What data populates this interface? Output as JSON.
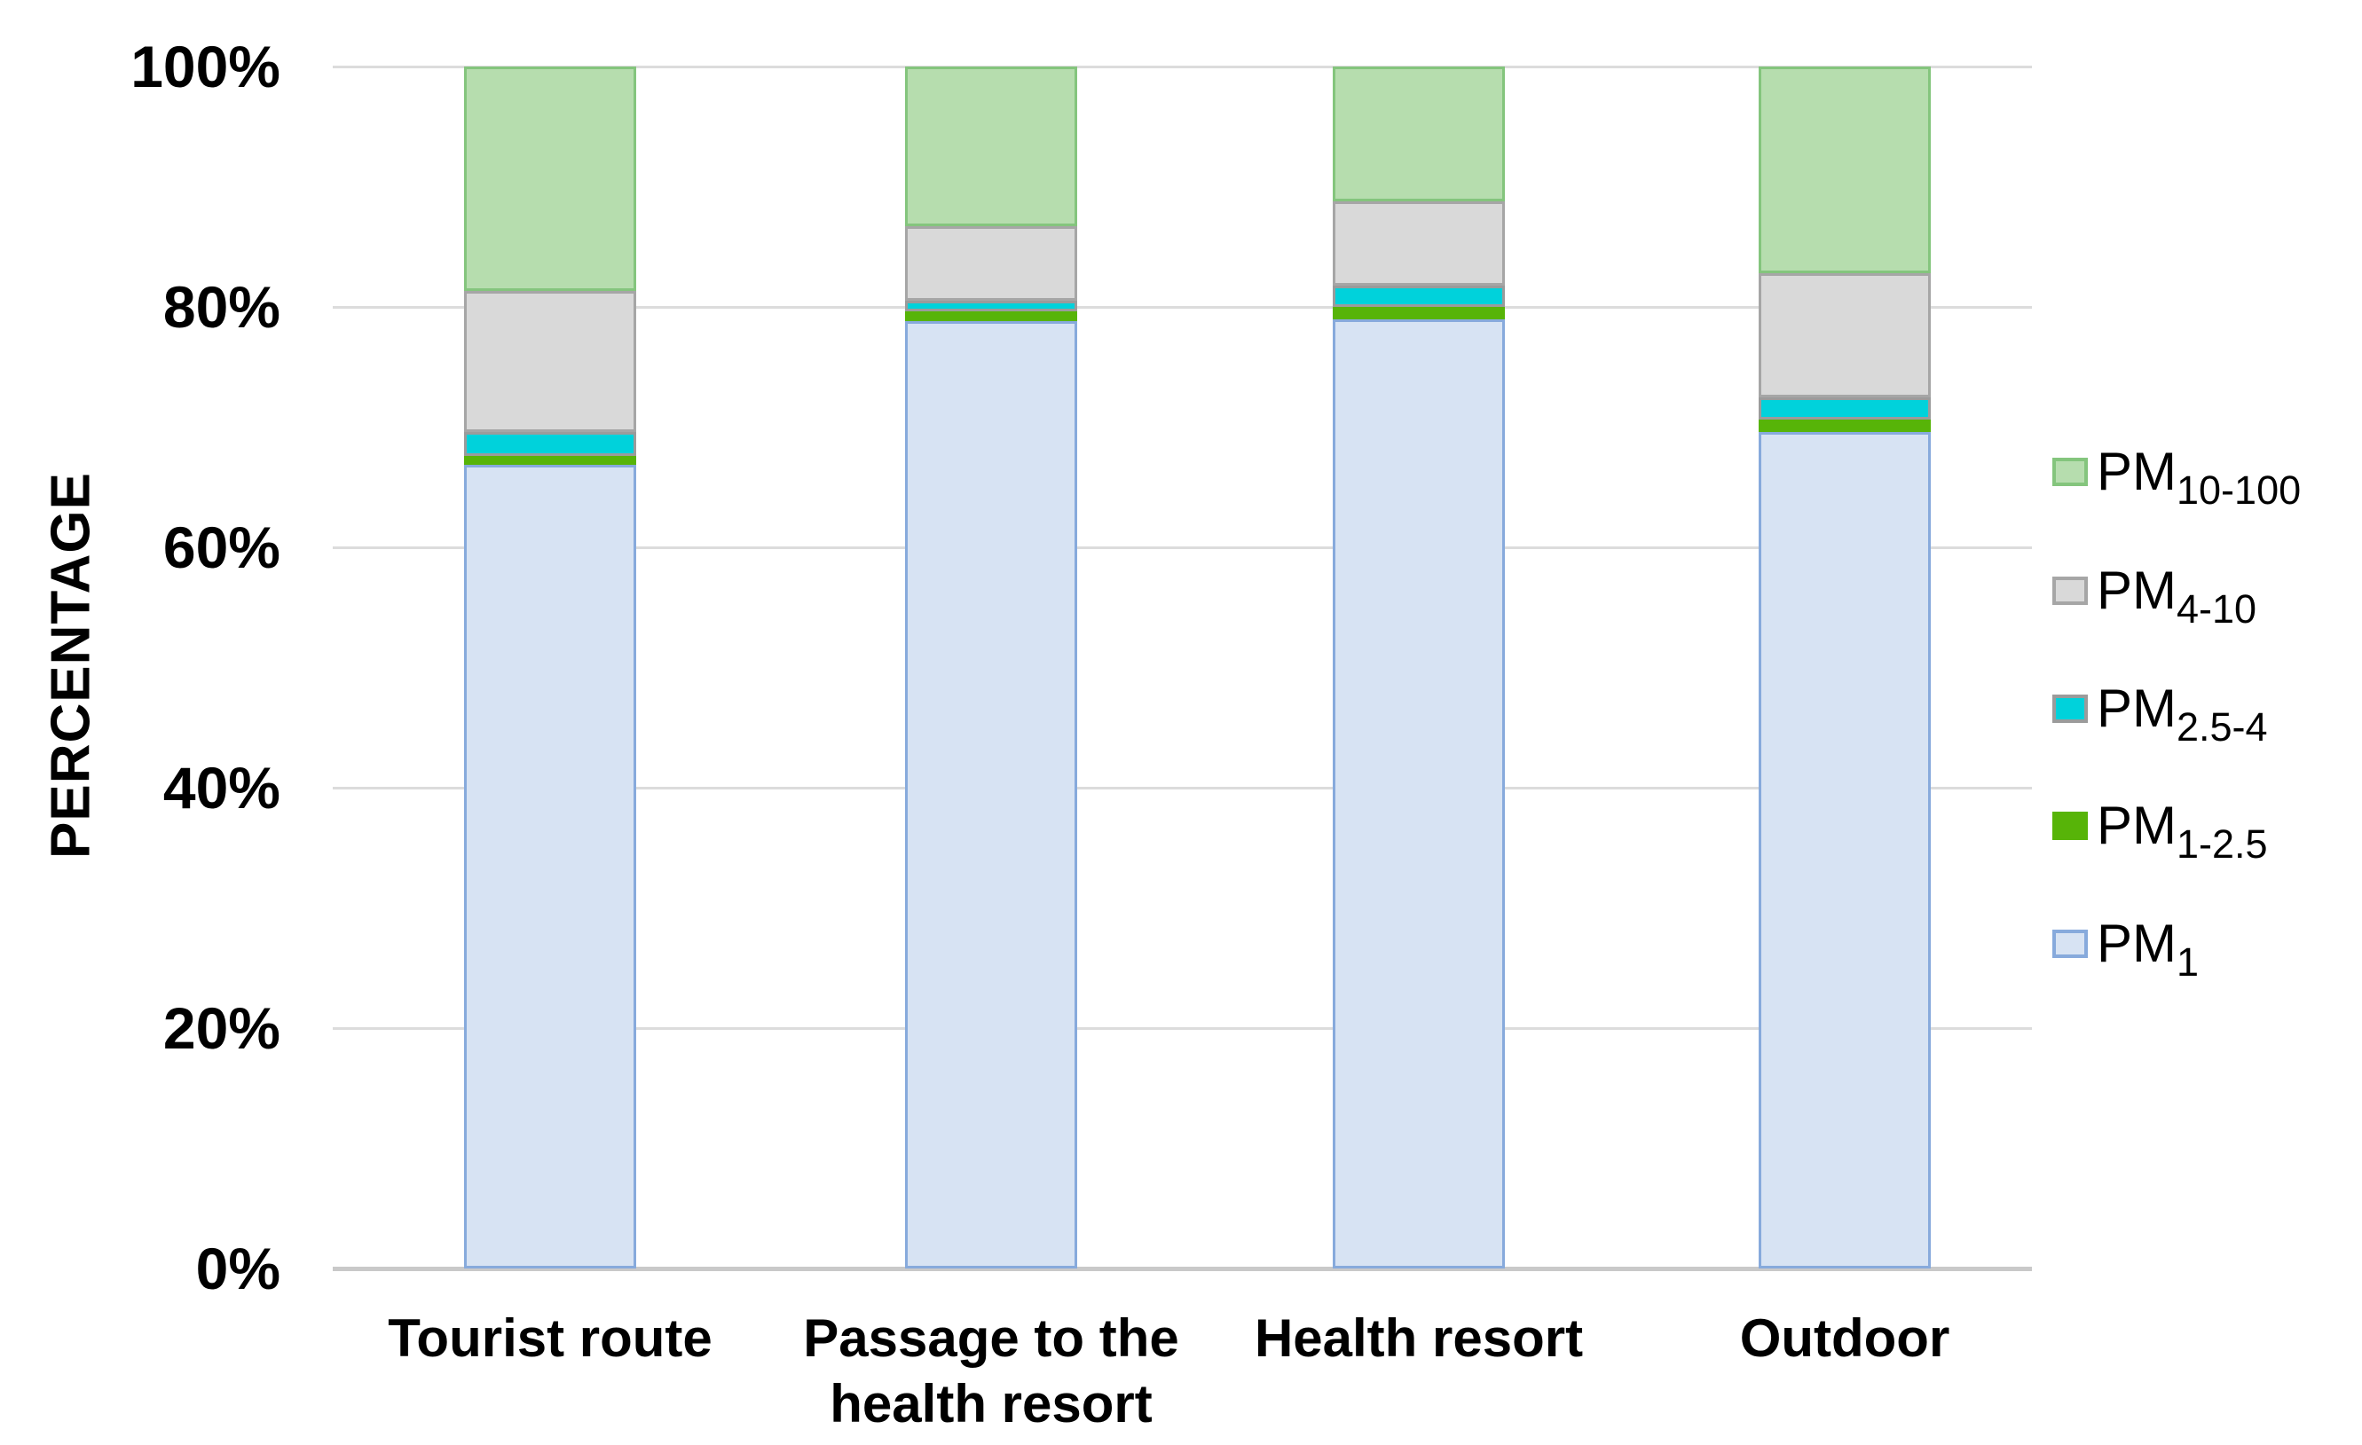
{
  "chart_data": {
    "type": "bar",
    "stacked": true,
    "percent_stacked": true,
    "title": "",
    "xlabel": "",
    "ylabel": "PERCENTAGE",
    "ylim": [
      0,
      100
    ],
    "grid": true,
    "legend_position": "right",
    "ytick_labels": [
      "0%",
      "20%",
      "40%",
      "60%",
      "80%",
      "100%"
    ],
    "ytick_values": [
      0,
      20,
      40,
      60,
      80,
      100
    ],
    "categories": [
      "Tourist route",
      "Passage to the health resort",
      "Health resort",
      "Outdoor"
    ],
    "series": [
      {
        "name": "PM1",
        "label_base": "PM",
        "label_sub": "1",
        "color": "#d7e3f3",
        "border": "#87aadc",
        "values": [
          66.9,
          78.8,
          79.0,
          69.6
        ]
      },
      {
        "name": "PM1-2.5",
        "label_base": "PM",
        "label_sub": "1-2.5",
        "color": "#57b408",
        "border": "#57b408",
        "values": [
          0.7,
          0.8,
          1.0,
          1.0
        ]
      },
      {
        "name": "PM2.5-4",
        "label_base": "PM",
        "label_sub": "2.5-4",
        "color": "#00d2db",
        "border": "#9b9b9b",
        "values": [
          2.0,
          0.9,
          1.8,
          1.9
        ]
      },
      {
        "name": "PM4-10",
        "label_base": "PM",
        "label_sub": "4-10",
        "color": "#d9d9d9",
        "border": "#a6a6a6",
        "values": [
          11.7,
          6.2,
          7.0,
          10.3
        ]
      },
      {
        "name": "PM10-100",
        "label_base": "PM",
        "label_sub": "10-100",
        "color": "#b6ddae",
        "border": "#84c57d",
        "values": [
          18.7,
          13.3,
          11.2,
          17.2
        ]
      }
    ],
    "legend_order_top_to_bottom": [
      "PM10-100",
      "PM4-10",
      "PM2.5-4",
      "PM1-2.5",
      "PM1"
    ],
    "colors": {
      "gridline": "#dcdcdc",
      "axis_line": "#c9c9c9",
      "text": "#000000"
    }
  }
}
